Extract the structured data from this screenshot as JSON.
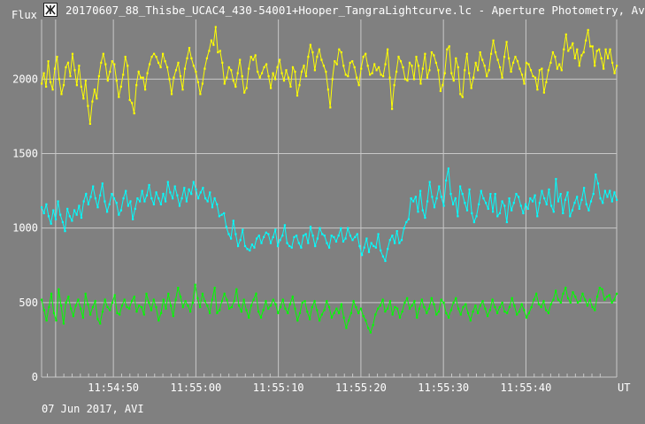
{
  "window": {
    "title": "20170607_88_Thisbe_UCAC4_430-54001+Hooper_TangraLightcurve.lc - Aperture Photometry, Av"
  },
  "footer": {
    "date_text": "07 Jun 2017, AVI"
  },
  "chart_data": {
    "type": "line",
    "ylabel": "Flux",
    "xunit": "UT",
    "ylim": [
      0,
      2400
    ],
    "yticks": [
      0,
      500,
      1000,
      1500,
      2000
    ],
    "xticks": [
      "11:54:50",
      "11:55:00",
      "11:55:10",
      "11:55:20",
      "11:55:30",
      "11:55:40"
    ],
    "grid": true,
    "background": "#808080",
    "gridColor": "#c8c8c8",
    "series": [
      {
        "color": "#ffff00",
        "x_start": "11:54:41.3",
        "x_end": "11:55:51.0",
        "values": [
          1970,
          2040,
          1950,
          2120,
          1980,
          1930,
          2070,
          2150,
          2000,
          1900,
          1960,
          2080,
          2110,
          2020,
          2170,
          2060,
          1960,
          2090,
          1950,
          1870,
          1990,
          1820,
          1700,
          1850,
          1930,
          1870,
          2020,
          2110,
          2170,
          2100,
          1990,
          2050,
          2120,
          2100,
          1990,
          1880,
          1950,
          2030,
          2150,
          2090,
          1860,
          1840,
          1770,
          1960,
          2050,
          2010,
          2010,
          1930,
          2040,
          2100,
          2150,
          2170,
          2150,
          2110,
          2080,
          2170,
          2120,
          2080,
          2000,
          1900,
          2010,
          2060,
          2110,
          2020,
          1930,
          2070,
          2140,
          2210,
          2140,
          2090,
          2050,
          1980,
          1900,
          1970,
          2070,
          2140,
          2190,
          2260,
          2230,
          2350,
          2180,
          2190,
          2110,
          1970,
          2010,
          2080,
          2060,
          1990,
          1950,
          2040,
          2130,
          2020,
          1910,
          1940,
          2070,
          2150,
          2130,
          2160,
          2050,
          2010,
          2040,
          2080,
          2100,
          2020,
          1940,
          2040,
          2000,
          2080,
          2130,
          2040,
          1990,
          2060,
          2010,
          1950,
          2080,
          2050,
          1890,
          1960,
          2050,
          2090,
          2020,
          2150,
          2230,
          2180,
          2060,
          2150,
          2200,
          2130,
          2090,
          2050,
          1930,
          1810,
          2000,
          2120,
          2100,
          2200,
          2180,
          2090,
          2030,
          2020,
          2110,
          2120,
          2080,
          2010,
          1960,
          2070,
          2150,
          2170,
          2090,
          2030,
          2040,
          2100,
          2060,
          2080,
          2030,
          2020,
          2100,
          2200,
          2010,
          1800,
          1960,
          2050,
          2150,
          2120,
          2080,
          2000,
          1990,
          2110,
          2090,
          2000,
          2150,
          2090,
          1970,
          2070,
          2170,
          2010,
          2060,
          2180,
          2160,
          2110,
          2060,
          1920,
          1960,
          2040,
          2200,
          2220,
          2040,
          1990,
          2140,
          2080,
          1900,
          1880,
          2060,
          2170,
          2040,
          1940,
          2010,
          2110,
          2060,
          2180,
          2130,
          2090,
          2020,
          2060,
          2170,
          2260,
          2180,
          2130,
          2080,
          2010,
          2150,
          2250,
          2140,
          2050,
          2110,
          2150,
          2120,
          2070,
          2030,
          1970,
          2110,
          2100,
          2060,
          2020,
          2010,
          1930,
          2060,
          2070,
          1910,
          1980,
          2060,
          2110,
          2180,
          2150,
          2070,
          2100,
          2060,
          2200,
          2300,
          2190,
          2210,
          2240,
          2140,
          2200,
          2090,
          2160,
          2180,
          2260,
          2330,
          2220,
          2220,
          2090,
          2190,
          2200,
          2140,
          2070,
          2200,
          2140,
          2200,
          2110,
          2040,
          2090
        ]
      },
      {
        "color": "#00ffff",
        "x_start": "11:54:41.3",
        "x_end": "11:55:51.0",
        "values": [
          1140,
          1100,
          1160,
          1080,
          1030,
          1120,
          1060,
          1180,
          1090,
          1040,
          980,
          1130,
          1080,
          1050,
          1120,
          1090,
          1150,
          1070,
          1180,
          1230,
          1160,
          1210,
          1280,
          1200,
          1140,
          1220,
          1300,
          1180,
          1110,
          1160,
          1230,
          1200,
          1170,
          1090,
          1120,
          1200,
          1250,
          1150,
          1180,
          1060,
          1130,
          1200,
          1180,
          1250,
          1180,
          1220,
          1290,
          1200,
          1160,
          1240,
          1200,
          1160,
          1230,
          1180,
          1310,
          1240,
          1200,
          1280,
          1220,
          1150,
          1200,
          1270,
          1180,
          1260,
          1230,
          1310,
          1260,
          1200,
          1240,
          1270,
          1200,
          1180,
          1240,
          1140,
          1200,
          1160,
          1080,
          1090,
          1100,
          1010,
          960,
          930,
          1050,
          960,
          880,
          920,
          990,
          880,
          860,
          850,
          890,
          870,
          930,
          950,
          900,
          940,
          970,
          960,
          900,
          940,
          990,
          880,
          920,
          950,
          1020,
          900,
          880,
          870,
          940,
          950,
          900,
          870,
          950,
          960,
          900,
          1010,
          950,
          880,
          930,
          1000,
          960,
          950,
          900,
          870,
          950,
          940,
          910,
          950,
          1000,
          910,
          930,
          1000,
          950,
          920,
          940,
          960,
          880,
          820,
          870,
          930,
          840,
          900,
          880,
          870,
          960,
          850,
          810,
          780,
          860,
          920,
          950,
          900,
          980,
          900,
          920,
          1000,
          1040,
          1060,
          1200,
          1180,
          1210,
          1110,
          1250,
          1120,
          1070,
          1180,
          1310,
          1210,
          1140,
          1200,
          1280,
          1210,
          1150,
          1320,
          1400,
          1230,
          1160,
          1200,
          1080,
          1280,
          1230,
          1170,
          1120,
          1260,
          1100,
          1040,
          1080,
          1160,
          1250,
          1200,
          1170,
          1130,
          1230,
          1110,
          1230,
          1080,
          1100,
          1180,
          1150,
          1040,
          1200,
          1120,
          1170,
          1230,
          1210,
          1150,
          1100,
          1160,
          1130,
          1200,
          1180,
          1220,
          1080,
          1170,
          1250,
          1200,
          1160,
          1260,
          1150,
          1110,
          1330,
          1180,
          1230,
          1100,
          1190,
          1240,
          1080,
          1120,
          1170,
          1210,
          1130,
          1190,
          1270,
          1160,
          1120,
          1180,
          1230,
          1360,
          1300,
          1200,
          1170,
          1250,
          1210,
          1250,
          1180,
          1240,
          1190
        ]
      },
      {
        "color": "#00ff00",
        "x_start": "11:54:41.3",
        "x_end": "11:55:51.0",
        "values": [
          520,
          450,
          380,
          470,
          560,
          430,
          380,
          590,
          480,
          360,
          500,
          540,
          460,
          410,
          480,
          520,
          460,
          400,
          560,
          490,
          420,
          470,
          510,
          390,
          360,
          440,
          520,
          470,
          450,
          500,
          550,
          430,
          420,
          480,
          520,
          470,
          460,
          510,
          540,
          440,
          480,
          470,
          420,
          560,
          500,
          450,
          520,
          470,
          380,
          430,
          520,
          460,
          560,
          480,
          410,
          520,
          600,
          540,
          470,
          510,
          480,
          440,
          500,
          620,
          530,
          470,
          560,
          510,
          480,
          430,
          520,
          600,
          430,
          450,
          510,
          560,
          520,
          460,
          470,
          510,
          590,
          480,
          440,
          520,
          450,
          400,
          480,
          520,
          560,
          440,
          400,
          450,
          510,
          460,
          480,
          520,
          490,
          430,
          470,
          520,
          460,
          430,
          490,
          540,
          460,
          380,
          430,
          500,
          510,
          440,
          390,
          470,
          510,
          450,
          380,
          420,
          450,
          510,
          470,
          400,
          430,
          460,
          430,
          490,
          400,
          330,
          380,
          430,
          510,
          470,
          430,
          460,
          410,
          380,
          330,
          300,
          350,
          420,
          460,
          480,
          520,
          440,
          460,
          510,
          420,
          470,
          460,
          400,
          440,
          500,
          530,
          460,
          480,
          510,
          400,
          460,
          520,
          470,
          430,
          460,
          530,
          490,
          420,
          440,
          520,
          500,
          430,
          400,
          450,
          500,
          530,
          460,
          420,
          470,
          490,
          430,
          380,
          440,
          480,
          430,
          480,
          510,
          460,
          410,
          450,
          520,
          470,
          430,
          470,
          500,
          440,
          430,
          470,
          530,
          480,
          420,
          440,
          490,
          450,
          400,
          430,
          470,
          520,
          560,
          490,
          470,
          510,
          450,
          430,
          490,
          520,
          580,
          520,
          500,
          560,
          600,
          530,
          500,
          570,
          540,
          500,
          510,
          560,
          520,
          480,
          520,
          470,
          450,
          540,
          600,
          590,
          520,
          540,
          550,
          500,
          520,
          560
        ]
      }
    ]
  }
}
